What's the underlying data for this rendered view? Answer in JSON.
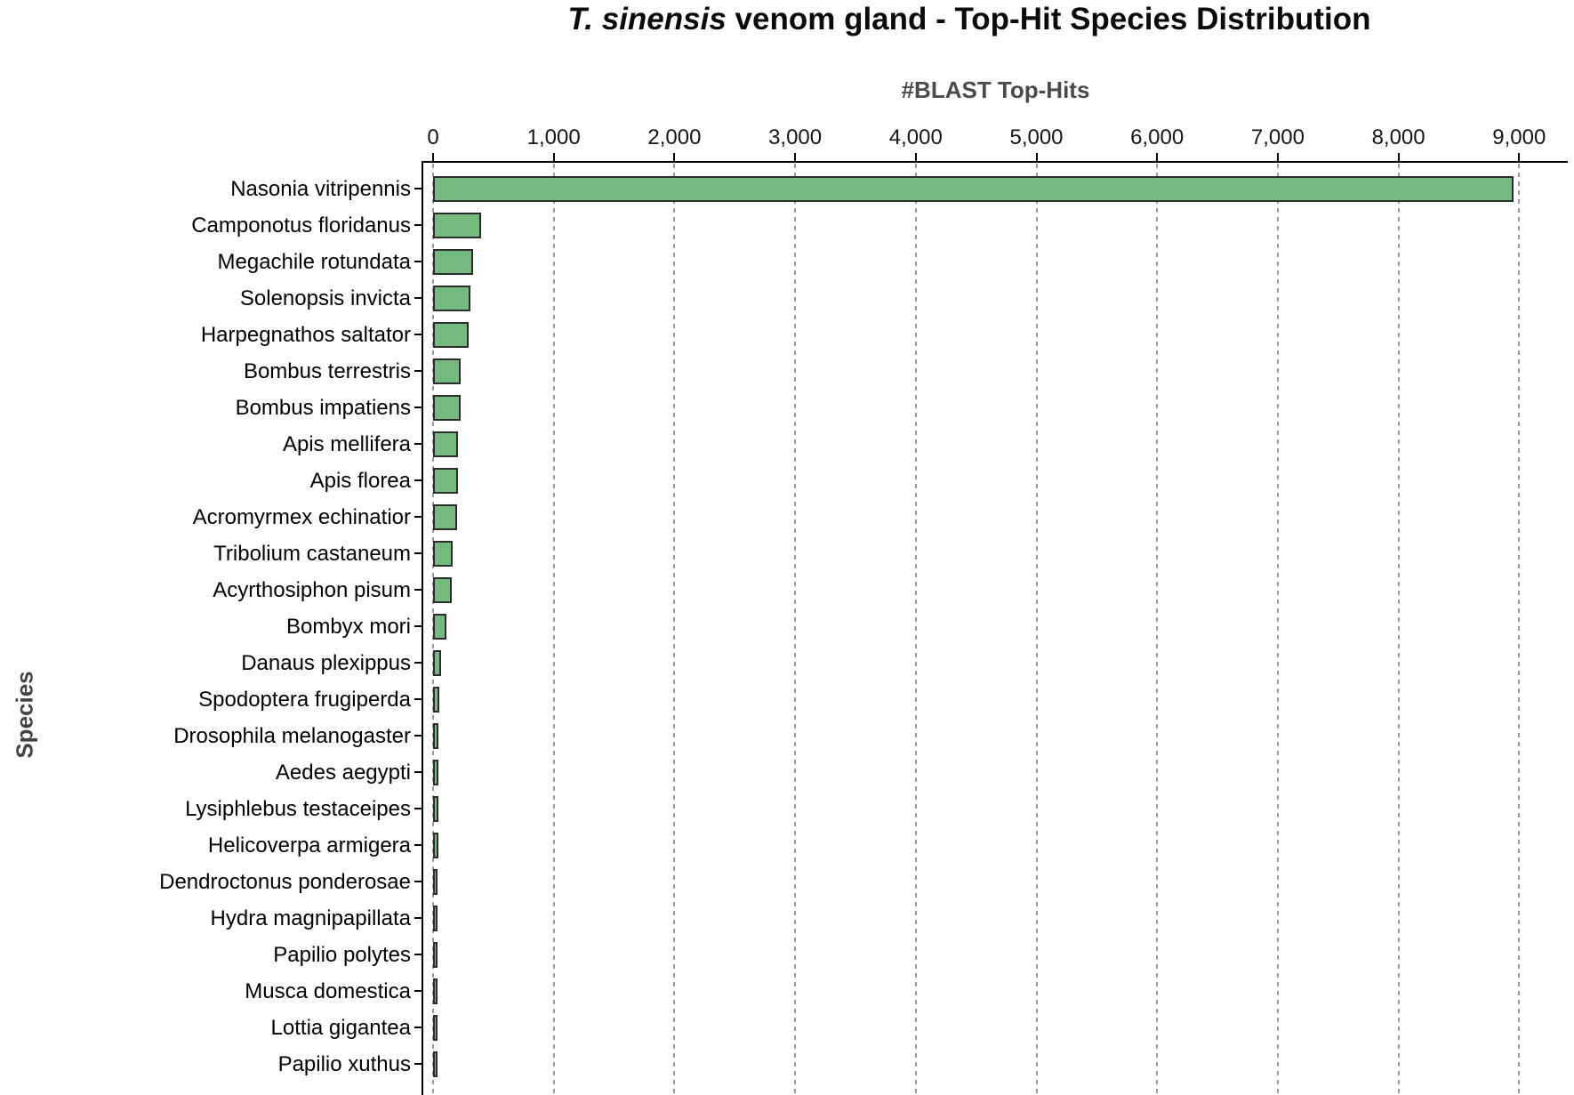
{
  "title": {
    "italic_part": "T. sinensis",
    "rest_part": " venom gland - Top-Hit Species Distribution"
  },
  "x_axis": {
    "label": "#BLAST Top-Hits",
    "tick_labels": [
      "0",
      "1,000",
      "2,000",
      "3,000",
      "4,000",
      "5,000",
      "6,000",
      "7,000",
      "8,000",
      "9,000"
    ],
    "tick_values": [
      0,
      1000,
      2000,
      3000,
      4000,
      5000,
      6000,
      7000,
      8000,
      9000
    ]
  },
  "y_axis": {
    "label": "Species"
  },
  "colors": {
    "bar_fill": "#74ba7f",
    "bar_border": "#2c2c2c",
    "gridline": "#9b9b9b",
    "axis_line": "#000000",
    "axis_title": "#4b4b4b",
    "tick_label": "#161616"
  },
  "chart_data": {
    "type": "bar",
    "orientation": "horizontal",
    "title": "T. sinensis venom gland - Top-Hit Species Distribution",
    "xlabel": "#BLAST Top-Hits",
    "ylabel": "Species",
    "xlim": [
      0,
      9400
    ],
    "grid": "vertical-dashed",
    "legend": "none",
    "categories": [
      "Nasonia vitripennis",
      "Camponotus floridanus",
      "Megachile rotundata",
      "Solenopsis invicta",
      "Harpegnathos saltator",
      "Bombus terrestris",
      "Bombus impatiens",
      "Apis mellifera",
      "Apis florea",
      "Acromyrmex echinatior",
      "Tribolium castaneum",
      "Acyrthosiphon pisum",
      "Bombyx mori",
      "Danaus plexippus",
      "Spodoptera frugiperda",
      "Drosophila melanogaster",
      "Aedes aegypti",
      "Lysiphlebus testaceipes",
      "Helicoverpa armigera",
      "Dendroctonus ponderosae",
      "Hydra magnipapillata",
      "Papilio polytes",
      "Musca domestica",
      "Lottia gigantea",
      "Papilio xuthus"
    ],
    "values": [
      8950,
      395,
      335,
      310,
      295,
      230,
      225,
      210,
      203,
      196,
      165,
      156,
      110,
      66,
      54,
      45,
      44,
      42,
      41,
      37,
      33,
      31,
      30,
      29,
      28
    ]
  }
}
